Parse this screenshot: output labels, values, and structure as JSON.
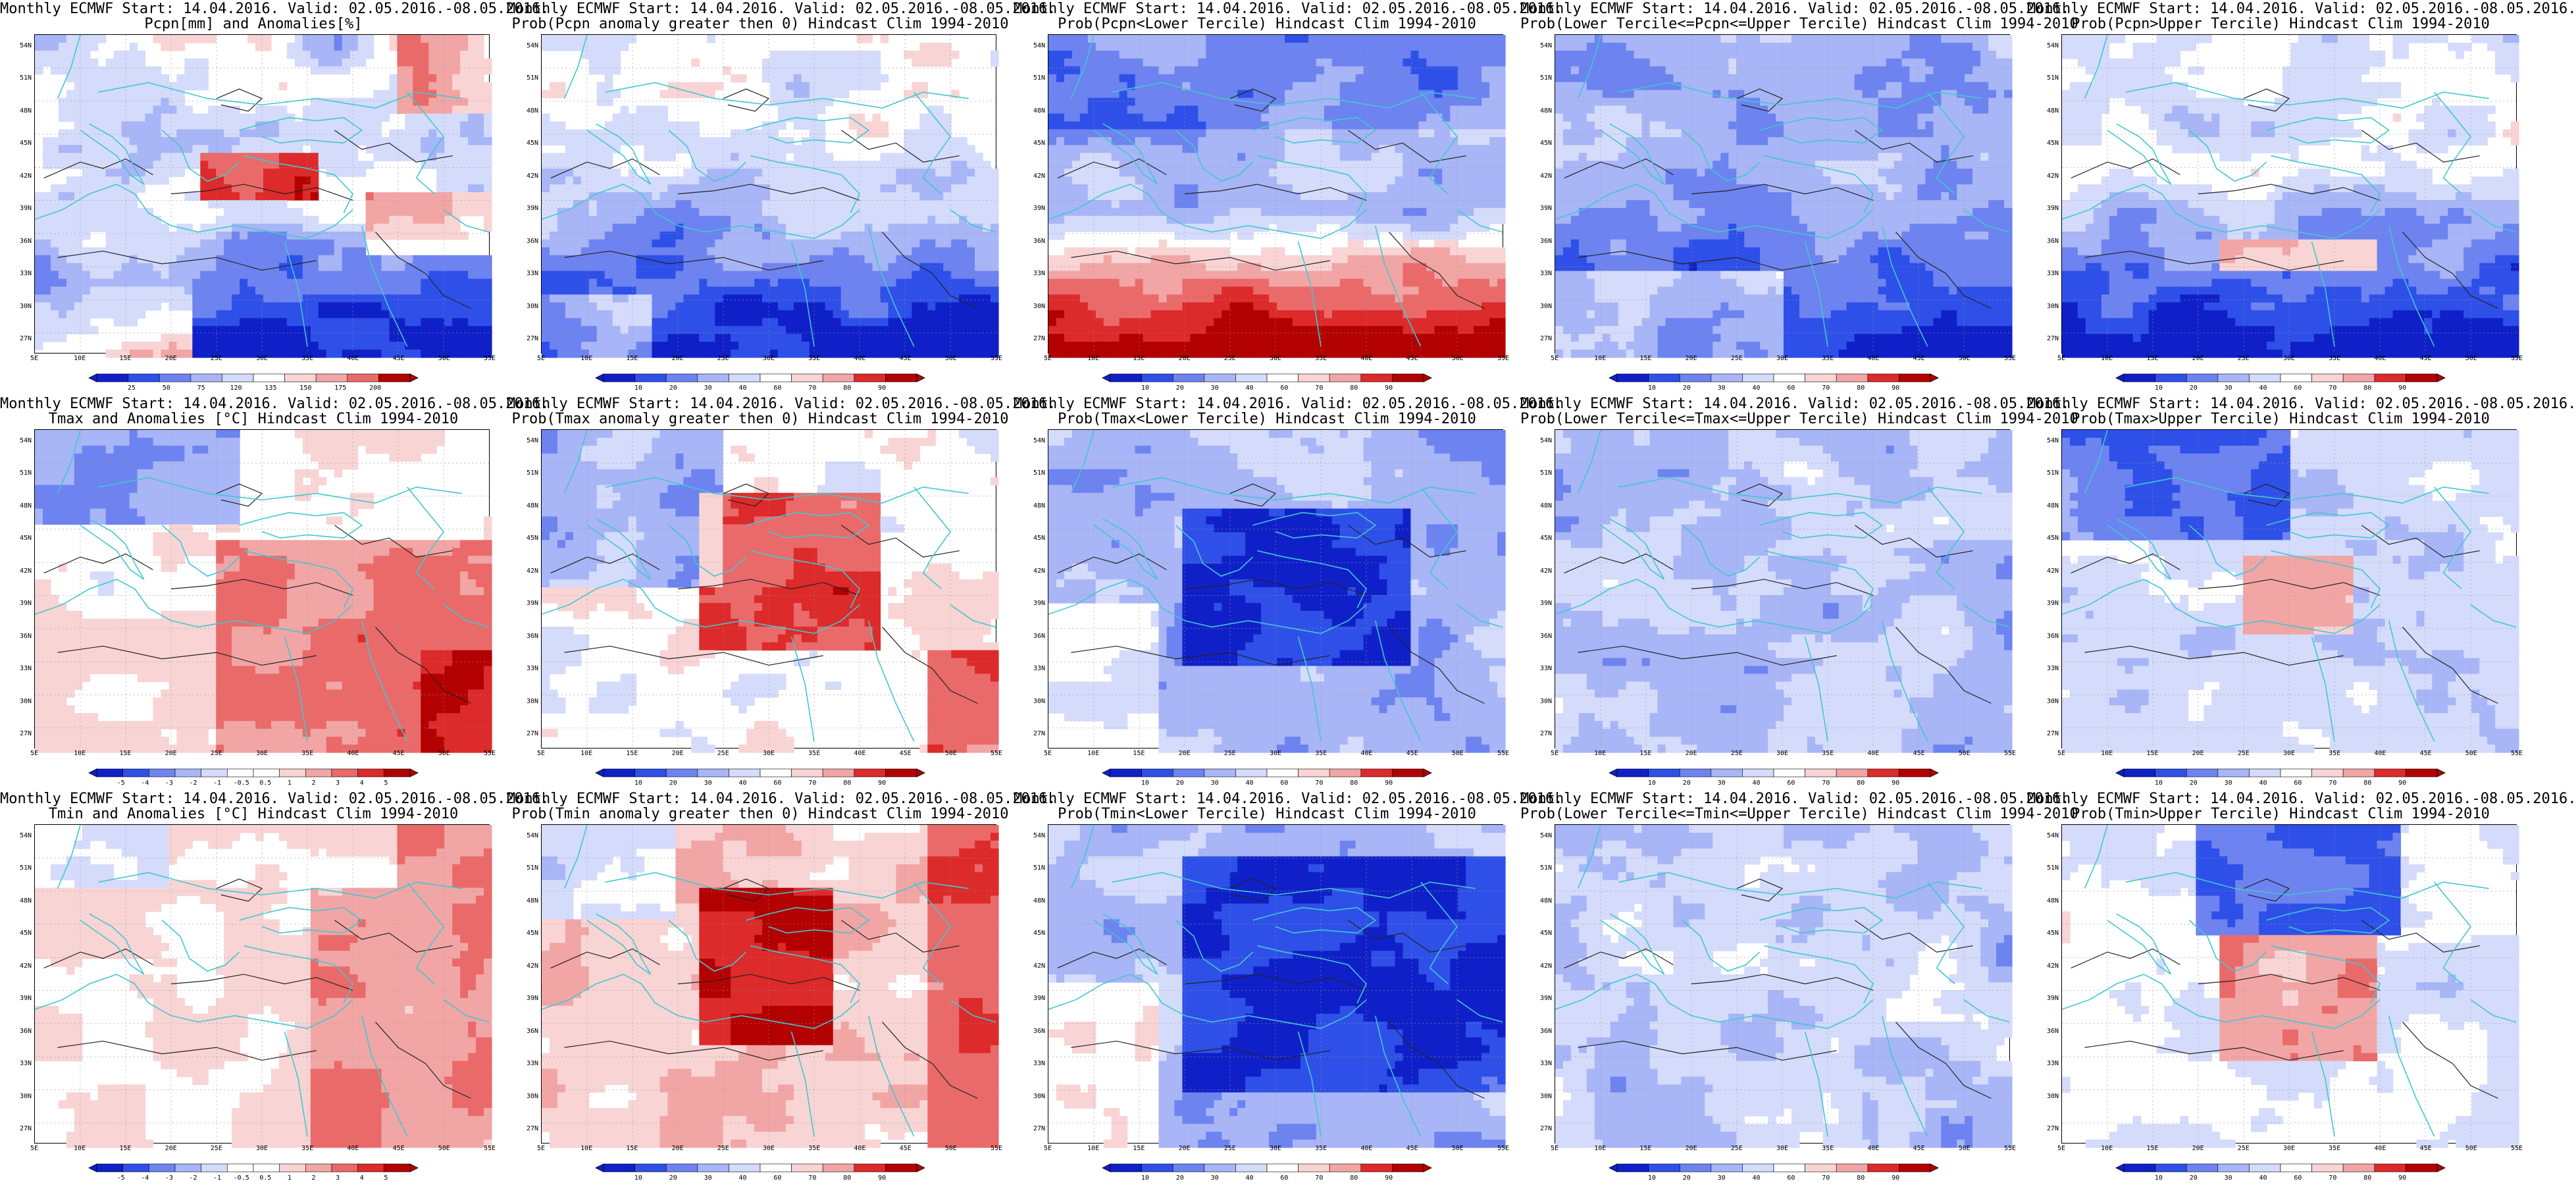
{
  "colors": {
    "deep_blue": "#1020c8",
    "blue": "#2e50e8",
    "mid_blue": "#6d83f0",
    "light_blue": "#a8b5f6",
    "pale_blue": "#d4dbfb",
    "white": "#ffffff",
    "pale_red": "#f9d4d4",
    "light_red": "#f2a5a5",
    "mid_red": "#ea6a6a",
    "red": "#dd2a2a",
    "deep_red": "#b30000",
    "coast": "#40c8d0",
    "contour": "#222222"
  },
  "axes": {
    "lat_labels": [
      "54N",
      "51N",
      "48N",
      "45N",
      "42N",
      "39N",
      "36N",
      "33N",
      "30N",
      "27N"
    ],
    "lon_labels": [
      "5E",
      "10E",
      "15E",
      "20E",
      "25E",
      "30E",
      "35E",
      "40E",
      "45E",
      "50E",
      "55E"
    ]
  },
  "colorbars": {
    "pcpn_anom": {
      "ticks": [
        "25",
        "50",
        "75",
        "120",
        "135",
        "150",
        "175",
        "200"
      ]
    },
    "temp_anom": {
      "ticks": [
        "-5",
        "-4",
        "-3",
        "-2",
        "-1",
        "-0.5",
        "0.5",
        "1",
        "2",
        "3",
        "4",
        "5"
      ]
    },
    "prob": {
      "ticks": [
        "10",
        "20",
        "30",
        "40",
        "60",
        "70",
        "80",
        "90"
      ]
    }
  },
  "panels": [
    {
      "line1": "Monthly ECMWF Start: 14.04.2016. Valid: 02.05.2016.-08.05.2016.",
      "line2": "Pcpn[mm] and Anomalies[%]",
      "scale": "pcpn_anom",
      "pattern": "p_anom"
    },
    {
      "line1": "Monthly ECMWF Start: 14.04.2016. Valid: 02.05.2016.-08.05.2016.",
      "line2": "Prob(Pcpn anomaly greater then 0) Hindcast Clim 1994-2010",
      "scale": "prob",
      "pattern": "p_gt0"
    },
    {
      "line1": "Monthly ECMWF Start: 14.04.2016. Valid: 02.05.2016.-08.05.2016.",
      "line2": "Prob(Pcpn<Lower Tercile) Hindcast Clim 1994-2010",
      "scale": "prob",
      "pattern": "p_lower"
    },
    {
      "line1": "Monthly ECMWF Start: 14.04.2016. Valid: 02.05.2016.-08.05.2016.",
      "line2": "Prob(Lower Tercile<=Pcpn<=Upper Tercile) Hindcast Clim 1994-2010",
      "scale": "prob",
      "pattern": "p_mid"
    },
    {
      "line1": "Monthly ECMWF Start: 14.04.2016. Valid: 02.05.2016.-08.05.2016.",
      "line2": "Prob(Pcpn>Upper Tercile) Hindcast Clim 1994-2010",
      "scale": "prob",
      "pattern": "p_upper"
    },
    {
      "line1": "Monthly ECMWF Start: 14.04.2016. Valid: 02.05.2016.-08.05.2016.",
      "line2": "Tmax and Anomalies [°C] Hindcast Clim 1994-2010",
      "scale": "temp_anom",
      "pattern": "t_anom"
    },
    {
      "line1": "Monthly ECMWF Start: 14.04.2016. Valid: 02.05.2016.-08.05.2016.",
      "line2": "Prob(Tmax anomaly greater then 0) Hindcast Clim 1994-2010",
      "scale": "prob",
      "pattern": "t_gt0"
    },
    {
      "line1": "Monthly ECMWF Start: 14.04.2016. Valid: 02.05.2016.-08.05.2016.",
      "line2": "Prob(Tmax<Lower Tercile) Hindcast Clim 1994-2010",
      "scale": "prob",
      "pattern": "t_lower"
    },
    {
      "line1": "Monthly ECMWF Start: 14.04.2016. Valid: 02.05.2016.-08.05.2016.",
      "line2": "Prob(Lower Tercile<=Tmax<=Upper Tercile) Hindcast Clim 1994-2010",
      "scale": "prob",
      "pattern": "t_mid"
    },
    {
      "line1": "Monthly ECMWF Start: 14.04.2016. Valid: 02.05.2016.-08.05.2016.",
      "line2": "Prob(Tmax>Upper Tercile) Hindcast Clim 1994-2010",
      "scale": "prob",
      "pattern": "t_upper"
    },
    {
      "line1": "Monthly ECMWF Start: 14.04.2016. Valid: 02.05.2016.-08.05.2016.",
      "line2": "Tmin and Anomalies [°C] Hindcast Clim 1994-2010",
      "scale": "temp_anom",
      "pattern": "n_anom"
    },
    {
      "line1": "Monthly ECMWF Start: 14.04.2016. Valid: 02.05.2016.-08.05.2016.",
      "line2": "Prob(Tmin anomaly greater then 0) Hindcast Clim 1994-2010",
      "scale": "prob",
      "pattern": "n_gt0"
    },
    {
      "line1": "Monthly ECMWF Start: 14.04.2016. Valid: 02.05.2016.-08.05.2016.",
      "line2": "Prob(Tmin<Lower Tercile) Hindcast Clim 1994-2010",
      "scale": "prob",
      "pattern": "n_lower"
    },
    {
      "line1": "Monthly ECMWF Start: 14.04.2016. Valid: 02.05.2016.-08.05.2016.",
      "line2": "Prob(Lower Tercile<=Tmin<=Upper Tercile) Hindcast Clim 1994-2010",
      "scale": "prob",
      "pattern": "n_mid"
    },
    {
      "line1": "Monthly ECMWF Start: 14.04.2016. Valid: 02.05.2016.-08.05.2016.",
      "line2": "Prob(Tmin>Upper Tercile) Hindcast Clim 1994-2010",
      "scale": "prob",
      "pattern": "n_upper"
    }
  ]
}
